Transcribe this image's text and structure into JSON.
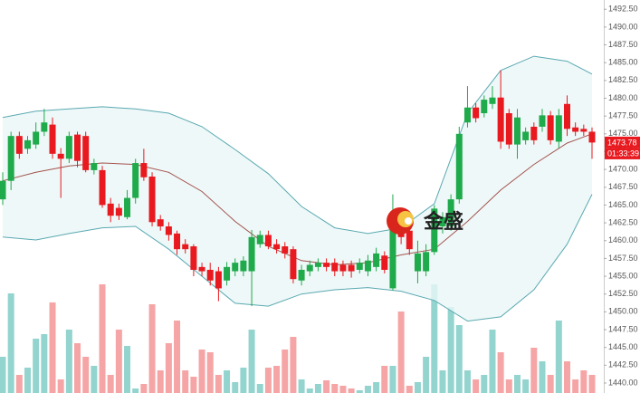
{
  "chart_data": {
    "type": "candlestick",
    "open": [
      1465.8,
      1468.4,
      1474.7,
      1472.9,
      1473.5,
      1475.3,
      1476.3,
      1472.2,
      1471.5,
      1474.9,
      1474.7,
      1469.9,
      1469.9,
      1465.2,
      1464.6,
      1463.3,
      1466.0,
      1470.9,
      1469.0,
      1463.0,
      1462.0,
      1461.0,
      1459.5,
      1459.2,
      1456.3,
      1455.9,
      1455.7,
      1454.4,
      1455.7,
      1455.7,
      1455.7,
      1459.5,
      1460.8,
      1459.5,
      1459.2,
      1458.8,
      1454.4,
      1455.7,
      1456.3,
      1456.9,
      1456.9,
      1456.6,
      1456.6,
      1455.9,
      1455.7,
      1456.3,
      1457.9,
      1453.3,
      1463.3,
      1461.4,
      1455.7,
      1455.7,
      1458.4,
      1462.0,
      1462.0,
      1465.8,
      1476.6,
      1478.7,
      1477.9,
      1479.2,
      1480.1,
      1477.9,
      1473.5,
      1474.1,
      1476.0,
      1476.0,
      1477.6,
      1473.9,
      1479.2,
      1475.9,
      1475.7,
      1475.3
    ],
    "high": [
      1469.6,
      1475.3,
      1475.3,
      1474.7,
      1476.6,
      1478.5,
      1477.3,
      1473.0,
      1475.3,
      1475.3,
      1475.3,
      1471.5,
      1470.5,
      1466.0,
      1465.2,
      1467.1,
      1471.5,
      1472.9,
      1469.6,
      1463.6,
      1462.6,
      1461.4,
      1460.2,
      1459.5,
      1456.9,
      1456.9,
      1456.3,
      1457.0,
      1457.5,
      1457.8,
      1461.5,
      1461.4,
      1461.4,
      1460.2,
      1459.8,
      1459.2,
      1456.6,
      1457.2,
      1457.5,
      1457.5,
      1457.5,
      1457.2,
      1457.2,
      1457.5,
      1458.0,
      1459.0,
      1458.5,
      1466.5,
      1464.6,
      1462.0,
      1460.0,
      1459.5,
      1465.0,
      1464.0,
      1466.5,
      1476.0,
      1481.7,
      1479.3,
      1480.4,
      1481.7,
      1483.9,
      1478.5,
      1478.5,
      1475.9,
      1476.6,
      1478.5,
      1478.2,
      1478.5,
      1480.4,
      1476.6,
      1476.3,
      1475.9
    ],
    "low": [
      1465.0,
      1467.1,
      1471.5,
      1472.2,
      1472.9,
      1474.7,
      1471.5,
      1466.0,
      1470.9,
      1470.3,
      1469.6,
      1469.3,
      1464.6,
      1462.6,
      1462.9,
      1463.0,
      1465.2,
      1468.4,
      1462.0,
      1461.4,
      1460.0,
      1458.0,
      1458.2,
      1455.0,
      1455.0,
      1453.7,
      1451.5,
      1453.7,
      1455.0,
      1455.0,
      1450.8,
      1459.0,
      1458.8,
      1458.2,
      1457.5,
      1454.0,
      1453.7,
      1455.0,
      1455.7,
      1455.7,
      1455.0,
      1455.0,
      1454.8,
      1455.4,
      1455.0,
      1455.7,
      1455.4,
      1453.0,
      1459.5,
      1458.0,
      1454.0,
      1455.0,
      1458.0,
      1461.0,
      1461.4,
      1465.2,
      1475.9,
      1476.6,
      1477.3,
      1478.5,
      1472.9,
      1472.9,
      1471.5,
      1473.5,
      1473.5,
      1475.3,
      1473.5,
      1473.0,
      1474.7,
      1474.7,
      1474.7,
      1471.5
    ],
    "close": [
      1468.4,
      1474.7,
      1472.2,
      1474.1,
      1475.3,
      1476.6,
      1472.2,
      1471.5,
      1474.7,
      1471.2,
      1469.9,
      1470.9,
      1465.0,
      1463.5,
      1463.5,
      1466.0,
      1470.9,
      1468.9,
      1462.6,
      1462.0,
      1460.8,
      1458.8,
      1458.8,
      1455.9,
      1455.7,
      1454.4,
      1453.3,
      1456.3,
      1456.9,
      1457.2,
      1460.5,
      1460.8,
      1459.2,
      1458.8,
      1458.2,
      1454.6,
      1455.9,
      1456.6,
      1456.9,
      1456.3,
      1455.7,
      1455.7,
      1455.7,
      1456.9,
      1457.2,
      1458.2,
      1455.9,
      1463.9,
      1460.5,
      1458.8,
      1458.2,
      1458.4,
      1464.5,
      1463.3,
      1465.8,
      1475.0,
      1478.7,
      1477.2,
      1479.8,
      1480.1,
      1473.9,
      1473.5,
      1477.3,
      1475.3,
      1474.1,
      1477.6,
      1474.1,
      1477.6,
      1475.7,
      1475.3,
      1475.3,
      1473.78
    ],
    "up_color": "#1faa4b",
    "down_color": "#e8191f",
    "volume": [
      40,
      110,
      20,
      28,
      60,
      65,
      100,
      15,
      70,
      55,
      40,
      30,
      120,
      20,
      70,
      52,
      5,
      10,
      98,
      25,
      55,
      80,
      25,
      18,
      48,
      45,
      20,
      25,
      12,
      28,
      70,
      10,
      28,
      30,
      48,
      62,
      15,
      5,
      10,
      14,
      10,
      8,
      5,
      3,
      8,
      12,
      30,
      30,
      90,
      8,
      12,
      40,
      120,
      25,
      95,
      75,
      25,
      15,
      20,
      70,
      45,
      15,
      20,
      15,
      50,
      35,
      20,
      80,
      35,
      15,
      25,
      20
    ],
    "volume_ylim": [
      0,
      140
    ],
    "volume_up_color": "#93d4cf",
    "volume_down_color": "#f5a5a5",
    "bands": {
      "x": [
        0,
        4,
        8,
        12,
        16,
        20,
        24,
        28,
        32,
        36,
        40,
        44,
        48,
        52,
        56,
        60,
        64,
        68,
        71
      ],
      "upper": [
        1477.3,
        1478.2,
        1478.5,
        1478.8,
        1478.5,
        1477.9,
        1476.0,
        1472.8,
        1469.4,
        1464.8,
        1461.8,
        1461.0,
        1461.8,
        1465.2,
        1477.9,
        1483.9,
        1485.9,
        1485.2,
        1483.4
      ],
      "middle": [
        1468.4,
        1469.6,
        1470.5,
        1470.9,
        1470.7,
        1469.6,
        1466.9,
        1462.7,
        1459.2,
        1457.2,
        1456.6,
        1456.9,
        1458.0,
        1458.8,
        1462.7,
        1467.1,
        1470.7,
        1473.7,
        1475.0
      ],
      "lower": [
        1460.5,
        1460.1,
        1461.0,
        1461.8,
        1462.0,
        1458.8,
        1455.0,
        1451.2,
        1450.8,
        1452.5,
        1453.1,
        1453.4,
        1452.9,
        1451.6,
        1448.7,
        1449.3,
        1453.1,
        1459.5,
        1466.5
      ],
      "band_color": "#5aa9b1",
      "middle_color": "#a3524e",
      "fill": "#eaf6f6"
    },
    "ylim": [
      1438.6,
      1493.8
    ],
    "yticks": [
      {
        "value": 1440,
        "label": "1440.00"
      },
      {
        "value": 1442.5,
        "label": "1442.50"
      },
      {
        "value": 1445,
        "label": "1445.00"
      },
      {
        "value": 1447.5,
        "label": "1447.50"
      },
      {
        "value": 1450,
        "label": "1450.00"
      },
      {
        "value": 1452.5,
        "label": "1452.50"
      },
      {
        "value": 1455,
        "label": "1455.00"
      },
      {
        "value": 1457.5,
        "label": "1457.50"
      },
      {
        "value": 1460,
        "label": "1460.00"
      },
      {
        "value": 1462.5,
        "label": "1462.50"
      },
      {
        "value": 1465,
        "label": "1465.00"
      },
      {
        "value": 1467.5,
        "label": "1467.50"
      },
      {
        "value": 1470,
        "label": "1470.00"
      },
      {
        "value": 1472.5,
        "label": "1472.50"
      },
      {
        "value": 1475,
        "label": "1475.00"
      },
      {
        "value": 1477.5,
        "label": "1477.50"
      },
      {
        "value": 1480,
        "label": "1480.00"
      },
      {
        "value": 1482.5,
        "label": "1482.50"
      },
      {
        "value": 1485,
        "label": "1485.00"
      },
      {
        "value": 1487.5,
        "label": "1487.50"
      },
      {
        "value": 1490,
        "label": "1490.00"
      },
      {
        "value": 1492.5,
        "label": "1492.50"
      }
    ],
    "last_price": 1473.78,
    "countdown": "01:33:39",
    "logo_text": "金盛"
  }
}
